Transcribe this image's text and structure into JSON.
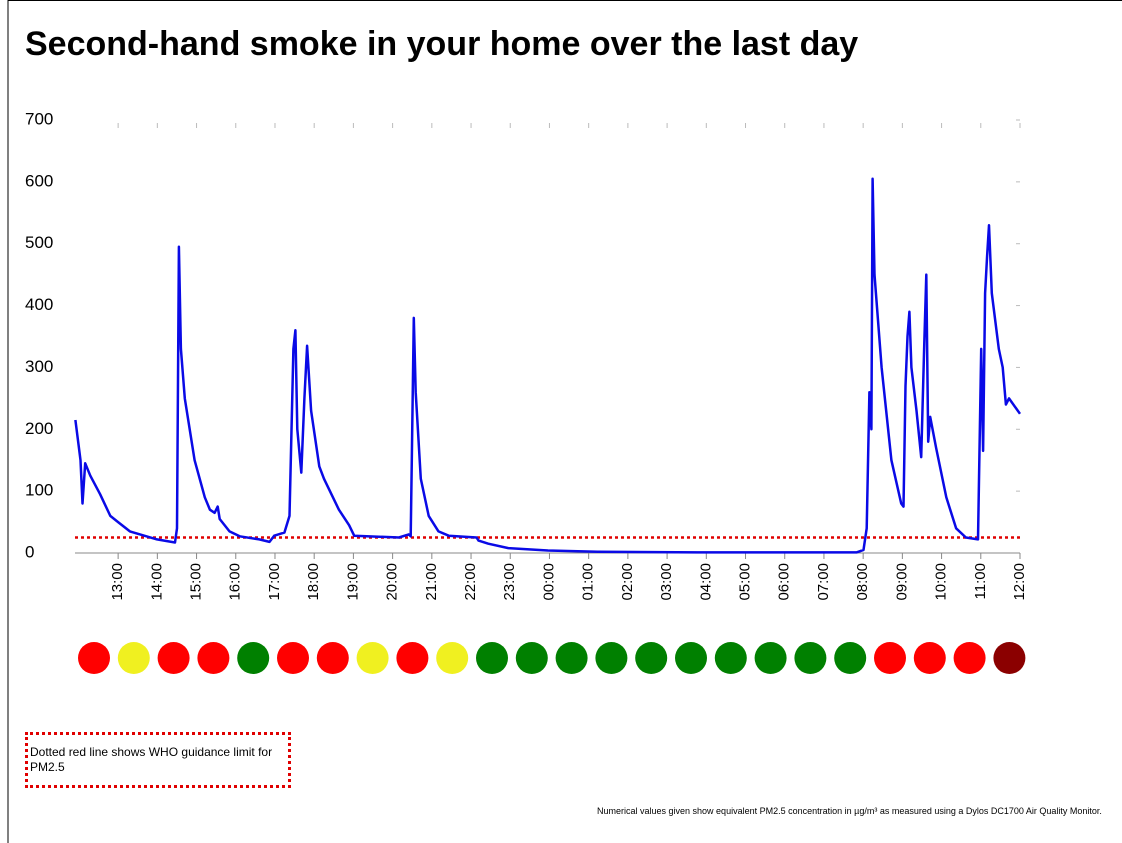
{
  "chart_data": {
    "type": "line",
    "title": "Second-hand smoke in your home over the last day",
    "x": [
      11.91,
      12.04,
      12.09,
      12.16,
      12.29,
      12.54,
      12.8,
      13.0,
      13.3,
      13.99,
      14.45,
      14.5,
      14.55,
      14.6,
      14.7,
      14.95,
      15.21,
      15.34,
      15.46,
      15.54,
      15.59,
      15.84,
      16.1,
      16.6,
      16.86,
      16.98,
      17.24,
      17.37,
      17.47,
      17.52,
      17.57,
      17.67,
      17.75,
      17.82,
      17.92,
      18.13,
      18.25,
      18.63,
      18.89,
      19.02,
      20.16,
      20.41,
      20.46,
      20.49,
      20.54,
      20.59,
      20.72,
      20.92,
      21.17,
      21.43,
      22.14,
      22.19,
      22.44,
      22.95,
      23.96,
      25.23,
      27.77,
      31.83,
      32.01,
      32.09,
      32.16,
      32.21,
      32.24,
      32.29,
      32.47,
      32.72,
      32.97,
      33.03,
      33.08,
      33.13,
      33.18,
      33.23,
      33.36,
      33.48,
      33.56,
      33.61,
      33.66,
      33.71,
      33.86,
      34.12,
      34.37,
      34.62,
      34.93,
      35.01,
      35.06,
      35.11,
      35.16,
      35.21,
      35.28,
      35.46,
      35.56,
      35.64,
      35.72,
      36.0
    ],
    "series": [
      {
        "color": "#0a0ae6",
        "values": [
          215,
          150,
          80,
          145,
          125,
          95,
          60,
          50,
          35,
          22,
          17,
          40,
          495,
          330,
          250,
          150,
          90,
          70,
          65,
          75,
          55,
          35,
          27,
          22,
          18,
          28,
          33,
          60,
          330,
          360,
          200,
          130,
          250,
          335,
          230,
          140,
          120,
          70,
          45,
          28,
          25,
          30,
          27,
          150,
          380,
          260,
          120,
          60,
          35,
          28,
          25,
          20,
          15,
          8,
          4,
          2,
          1,
          1,
          5,
          40,
          260,
          200,
          605,
          450,
          300,
          150,
          80,
          75,
          270,
          350,
          390,
          300,
          230,
          155,
          340,
          450,
          180,
          220,
          170,
          90,
          40,
          25,
          22,
          330,
          165,
          420,
          480,
          530,
          420,
          330,
          300,
          240,
          250,
          225
        ]
      }
    ],
    "xlim": [
      11.9,
      36
    ],
    "xticks": [
      {
        "value": 13,
        "label": "13:00"
      },
      {
        "value": 14,
        "label": "14:00"
      },
      {
        "value": 15,
        "label": "15:00"
      },
      {
        "value": 16,
        "label": "16:00"
      },
      {
        "value": 17,
        "label": "17:00"
      },
      {
        "value": 18,
        "label": "18:00"
      },
      {
        "value": 19,
        "label": "19:00"
      },
      {
        "value": 20,
        "label": "20:00"
      },
      {
        "value": 21,
        "label": "21:00"
      },
      {
        "value": 22,
        "label": "22:00"
      },
      {
        "value": 23,
        "label": "23:00"
      },
      {
        "value": 24,
        "label": "00:00"
      },
      {
        "value": 25,
        "label": "01:00"
      },
      {
        "value": 26,
        "label": "02:00"
      },
      {
        "value": 27,
        "label": "03:00"
      },
      {
        "value": 28,
        "label": "04:00"
      },
      {
        "value": 29,
        "label": "05:00"
      },
      {
        "value": 30,
        "label": "06:00"
      },
      {
        "value": 31,
        "label": "07:00"
      },
      {
        "value": 32,
        "label": "08:00"
      },
      {
        "value": 33,
        "label": "09:00"
      },
      {
        "value": 34,
        "label": "10:00"
      },
      {
        "value": 35,
        "label": "11:00"
      },
      {
        "value": 36,
        "label": "12:00"
      }
    ],
    "ylim": [
      0,
      700
    ],
    "yticks": [
      0,
      100,
      200,
      300,
      400,
      500,
      600,
      700
    ],
    "threshold": {
      "value": 25,
      "color": "#e00000"
    },
    "hour_colors": [
      "#ff0000",
      "#f0f020",
      "#ff0000",
      "#ff0000",
      "#008000",
      "#ff0000",
      "#ff0000",
      "#f0f020",
      "#ff0000",
      "#f0f020",
      "#008000",
      "#008000",
      "#008000",
      "#008000",
      "#008000",
      "#008000",
      "#008000",
      "#008000",
      "#008000",
      "#008000",
      "#ff0000",
      "#ff0000",
      "#ff0000",
      "#8b0000"
    ],
    "annotation": "Dotted red line shows WHO guidance limit for PM2.5",
    "footnote": "Numerical values given show equivalent PM2.5 concentration in µg/m³ as measured using a Dylos DC1700 Air Quality Monitor."
  }
}
